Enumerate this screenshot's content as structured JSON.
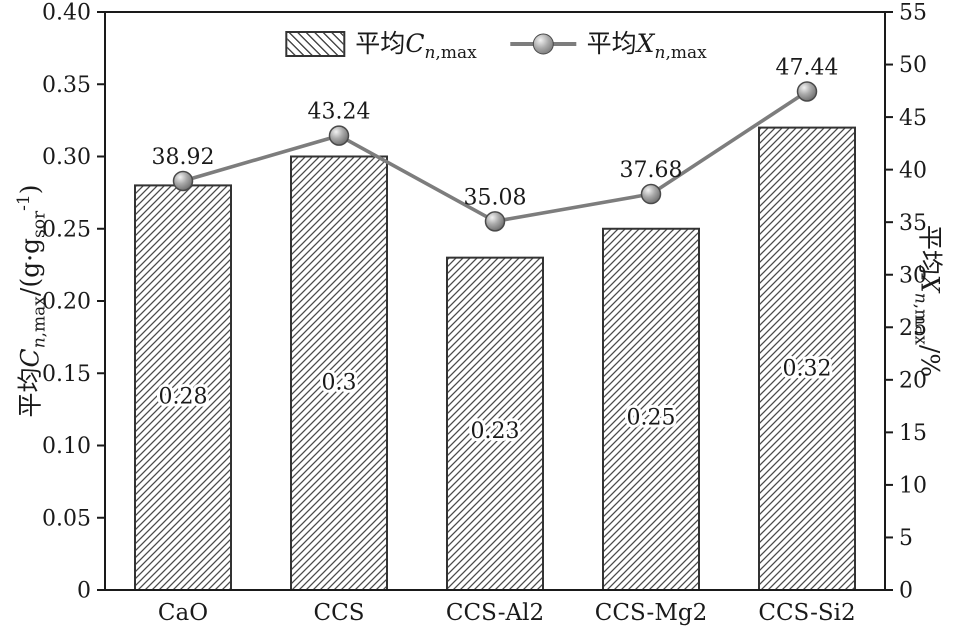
{
  "colors": {
    "axis": "#1a1a1a",
    "text": "#1a1a1a",
    "bar_edge": "#333333",
    "hatch": "#4a4a4a",
    "line": "#7d7d7d",
    "marker_stroke": "#4a4a4a"
  },
  "legend": {
    "bar": {
      "prefix": "平均",
      "symbol": "C",
      "sub_italic": "n",
      "sub_roman": ",max"
    },
    "line": {
      "prefix": "平均",
      "symbol": "X",
      "sub_italic": "n",
      "sub_roman": ",max"
    }
  },
  "axes": {
    "left": {
      "title": {
        "prefix": "平均",
        "symbol": "C",
        "sub_italic": "n",
        "sub_roman": ",max",
        "unit_pre": "/(g·g",
        "unit_sub": "sor",
        "unit_sup": "-1",
        "unit_post": ")"
      }
    },
    "right": {
      "title": {
        "prefix": "平均",
        "symbol": "X",
        "sub_italic": "n",
        "sub_roman": ",max",
        "suffix": "/%"
      }
    }
  },
  "chart_data": {
    "type": "combo",
    "categories": [
      "CaO",
      "CCS",
      "CCS-Al2",
      "CCS-Mg2",
      "CCS-Si2"
    ],
    "series": [
      {
        "name": "平均C n,max",
        "type": "bar",
        "axis": "left",
        "values": [
          0.28,
          0.3,
          0.23,
          0.25,
          0.32
        ],
        "labels": [
          "0.28",
          "0.3",
          "0.23",
          "0.25",
          "0.32"
        ]
      },
      {
        "name": "平均X n,max",
        "type": "line",
        "axis": "right",
        "values": [
          38.92,
          43.24,
          35.08,
          37.68,
          47.44
        ],
        "labels": [
          "38.92",
          "43.24",
          "35.08",
          "37.68",
          "47.44"
        ]
      }
    ],
    "left_axis": {
      "label": "平均C n,max /(g·g sor -1)",
      "range": [
        0,
        0.4
      ],
      "tick_step": 0.05,
      "tick_labels": [
        "0",
        "0.05",
        "0.10",
        "0.15",
        "0.20",
        "0.25",
        "0.30",
        "0.35",
        "0.40"
      ]
    },
    "right_axis": {
      "label": "平均X n,max /%",
      "range": [
        0,
        55
      ],
      "tick_step": 5,
      "tick_labels": [
        "0",
        "5",
        "10",
        "15",
        "20",
        "25",
        "30",
        "35",
        "40",
        "45",
        "50",
        "55"
      ]
    },
    "legend_position": "top-center",
    "grid": false
  }
}
